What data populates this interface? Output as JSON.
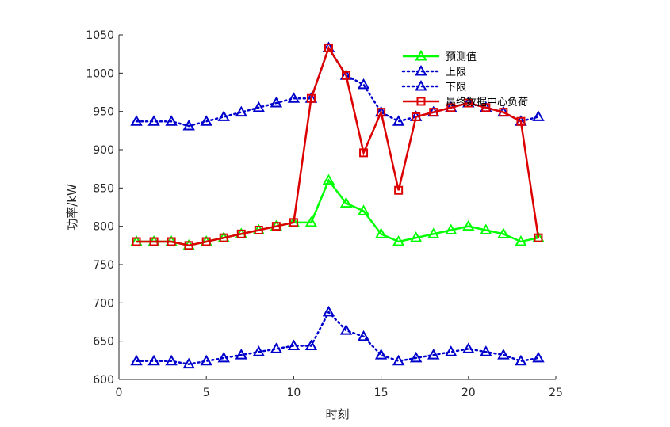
{
  "chart_data": {
    "type": "line",
    "xlabel": "时刻",
    "ylabel": "功率/kW",
    "xlim": [
      0,
      25
    ],
    "ylim": [
      600,
      1050
    ],
    "xticks": [
      0,
      5,
      10,
      15,
      20,
      25
    ],
    "yticks": [
      600,
      650,
      700,
      750,
      800,
      850,
      900,
      950,
      1000,
      1050
    ],
    "grid": false,
    "legend_position": "top-right",
    "x": [
      1,
      2,
      3,
      4,
      5,
      6,
      7,
      8,
      9,
      10,
      11,
      12,
      13,
      14,
      15,
      16,
      17,
      18,
      19,
      20,
      21,
      22,
      23,
      24
    ],
    "series": [
      {
        "name": "预测值",
        "color": "#00ff00",
        "line_style": "solid",
        "marker": "triangle",
        "values": [
          780,
          780,
          780,
          775,
          780,
          785,
          790,
          795,
          800,
          805,
          805,
          860,
          830,
          820,
          790,
          780,
          785,
          790,
          795,
          800,
          795,
          790,
          780,
          785
        ]
      },
      {
        "name": "上限",
        "color": "#0000cc",
        "line_style": "dotted",
        "marker": "triangle",
        "values": [
          937,
          937,
          937,
          931,
          937,
          943,
          949,
          955,
          961,
          967,
          967,
          1033,
          997,
          985,
          949,
          937,
          943,
          949,
          955,
          961,
          955,
          949,
          937,
          943
        ]
      },
      {
        "name": "下限",
        "color": "#0000cc",
        "line_style": "dotted",
        "marker": "triangle",
        "values": [
          624,
          624,
          624,
          620,
          624,
          628,
          632,
          636,
          640,
          644,
          644,
          688,
          664,
          656,
          632,
          624,
          628,
          632,
          636,
          640,
          636,
          632,
          624,
          628
        ]
      },
      {
        "name": "最终数据中心负荷",
        "color": "#dd0000",
        "line_style": "solid",
        "marker": "square",
        "values": [
          780,
          780,
          780,
          775,
          780,
          785,
          790,
          795,
          800,
          805,
          967,
          1033,
          997,
          896,
          949,
          847,
          943,
          949,
          955,
          961,
          955,
          949,
          937,
          785
        ]
      }
    ]
  }
}
